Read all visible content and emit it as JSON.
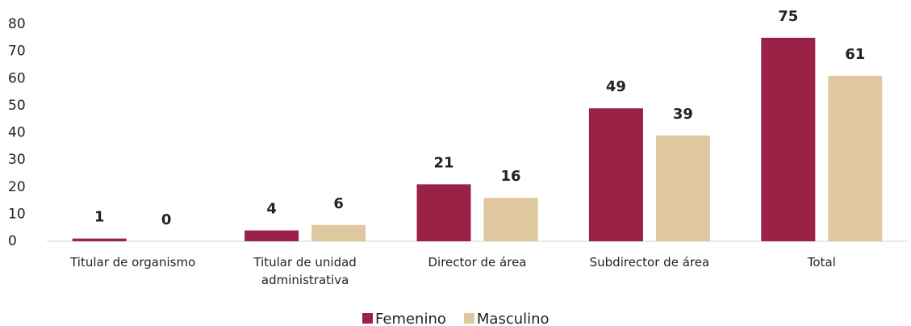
{
  "chart_data": {
    "type": "bar",
    "categories": [
      "Titular de organismo",
      "Titular de unidad administrativa",
      "Director de área",
      "Subdirector de área",
      "Total"
    ],
    "series": [
      {
        "name": "Femenino",
        "color": "#9b2247",
        "values": [
          1,
          4,
          21,
          49,
          75
        ]
      },
      {
        "name": "Masculino",
        "color": "#dfc8a0",
        "values": [
          0,
          6,
          16,
          39,
          61
        ]
      }
    ],
    "ylim": [
      0,
      80
    ],
    "yticks": [
      0,
      10,
      20,
      30,
      40,
      50,
      60,
      70,
      80
    ],
    "grid": false,
    "legend": "bottom"
  }
}
